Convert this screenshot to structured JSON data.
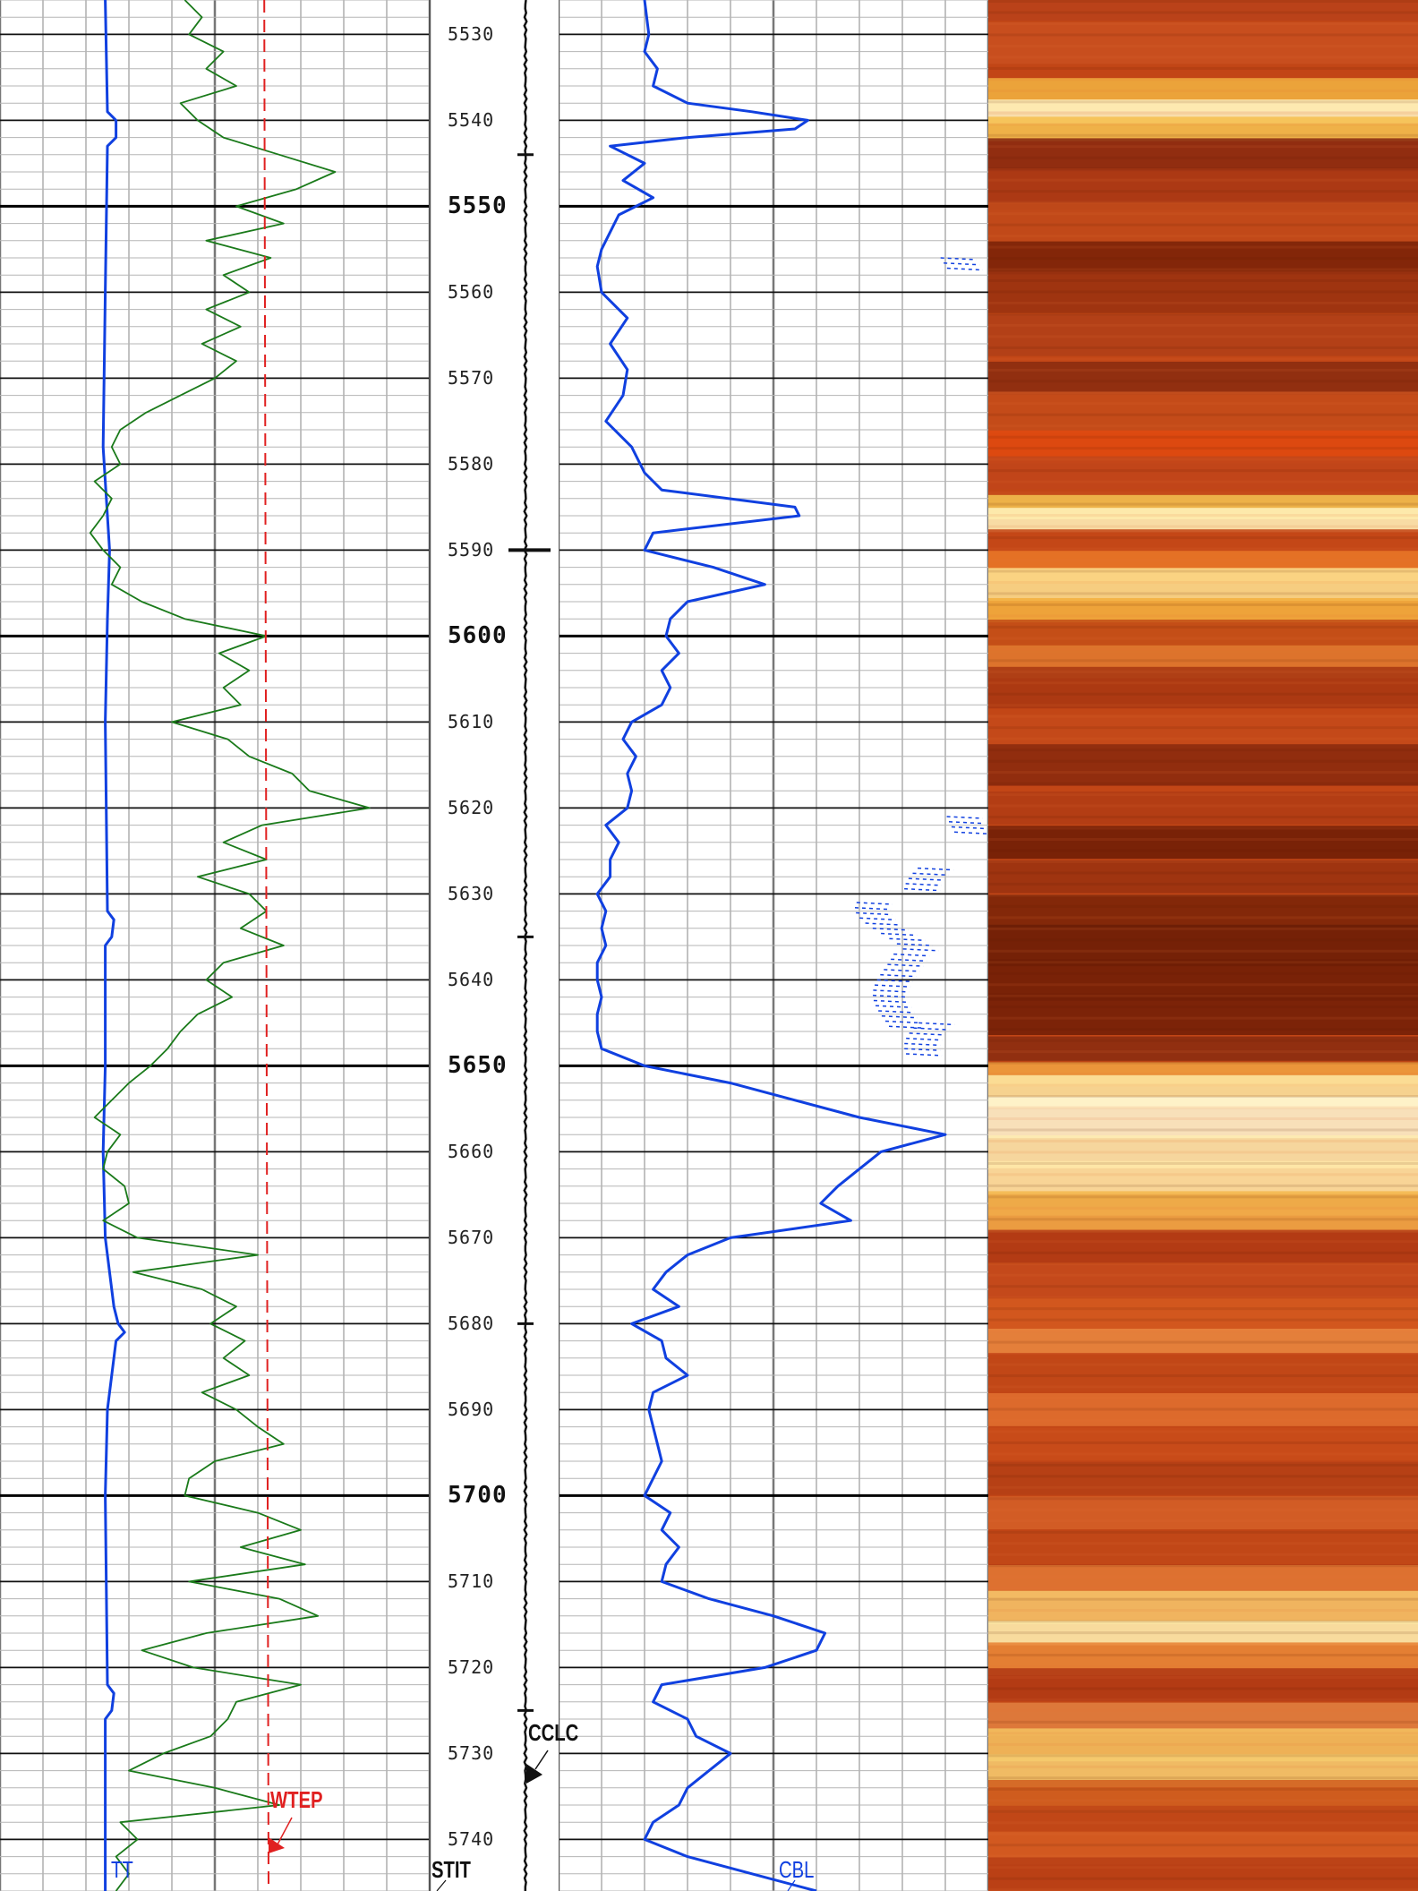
{
  "chart_data": {
    "type": "line",
    "title": "",
    "depth_range": [
      5526,
      5746
    ],
    "depth_labels": [
      "5530",
      "5540",
      "5550",
      "5560",
      "5570",
      "5580",
      "5590",
      "5600",
      "5610",
      "5620",
      "5630",
      "5640",
      "5650",
      "5660",
      "5670",
      "5680",
      "5690",
      "5700",
      "5710",
      "5720",
      "5730",
      "5740"
    ],
    "series": [
      {
        "name": "TT",
        "track": "left",
        "color": "#1040e0",
        "points": [
          [
            5526,
            0.245
          ],
          [
            5539,
            0.25
          ],
          [
            5540,
            0.27
          ],
          [
            5542,
            0.27
          ],
          [
            5543,
            0.25
          ],
          [
            5560,
            0.245
          ],
          [
            5578,
            0.24
          ],
          [
            5590,
            0.255
          ],
          [
            5598,
            0.25
          ],
          [
            5610,
            0.245
          ],
          [
            5632,
            0.25
          ],
          [
            5633,
            0.265
          ],
          [
            5635,
            0.26
          ],
          [
            5636,
            0.245
          ],
          [
            5650,
            0.245
          ],
          [
            5660,
            0.24
          ],
          [
            5670,
            0.245
          ],
          [
            5678,
            0.265
          ],
          [
            5680,
            0.275
          ],
          [
            5681,
            0.29
          ],
          [
            5682,
            0.27
          ],
          [
            5690,
            0.25
          ],
          [
            5700,
            0.245
          ],
          [
            5722,
            0.25
          ],
          [
            5723,
            0.265
          ],
          [
            5725,
            0.26
          ],
          [
            5726,
            0.245
          ],
          [
            5746,
            0.245
          ]
        ]
      },
      {
        "name": "STIT",
        "track": "left",
        "color": "#1a7a1a",
        "points": [
          [
            5526,
            0.43
          ],
          [
            5528,
            0.47
          ],
          [
            5530,
            0.44
          ],
          [
            5532,
            0.52
          ],
          [
            5534,
            0.48
          ],
          [
            5536,
            0.55
          ],
          [
            5538,
            0.42
          ],
          [
            5540,
            0.46
          ],
          [
            5542,
            0.52
          ],
          [
            5544,
            0.65
          ],
          [
            5546,
            0.78
          ],
          [
            5548,
            0.69
          ],
          [
            5550,
            0.55
          ],
          [
            5552,
            0.66
          ],
          [
            5554,
            0.48
          ],
          [
            5556,
            0.63
          ],
          [
            5558,
            0.52
          ],
          [
            5560,
            0.58
          ],
          [
            5562,
            0.48
          ],
          [
            5564,
            0.56
          ],
          [
            5566,
            0.47
          ],
          [
            5568,
            0.55
          ],
          [
            5570,
            0.5
          ],
          [
            5572,
            0.42
          ],
          [
            5574,
            0.34
          ],
          [
            5576,
            0.28
          ],
          [
            5578,
            0.26
          ],
          [
            5580,
            0.28
          ],
          [
            5582,
            0.22
          ],
          [
            5584,
            0.26
          ],
          [
            5586,
            0.24
          ],
          [
            5588,
            0.21
          ],
          [
            5590,
            0.24
          ],
          [
            5592,
            0.28
          ],
          [
            5594,
            0.26
          ],
          [
            5596,
            0.33
          ],
          [
            5598,
            0.43
          ],
          [
            5600,
            0.62
          ],
          [
            5602,
            0.51
          ],
          [
            5604,
            0.58
          ],
          [
            5606,
            0.52
          ],
          [
            5608,
            0.56
          ],
          [
            5610,
            0.4
          ],
          [
            5612,
            0.53
          ],
          [
            5614,
            0.58
          ],
          [
            5616,
            0.68
          ],
          [
            5618,
            0.72
          ],
          [
            5620,
            0.86
          ],
          [
            5622,
            0.61
          ],
          [
            5624,
            0.52
          ],
          [
            5626,
            0.62
          ],
          [
            5628,
            0.46
          ],
          [
            5630,
            0.58
          ],
          [
            5632,
            0.62
          ],
          [
            5634,
            0.56
          ],
          [
            5636,
            0.66
          ],
          [
            5638,
            0.52
          ],
          [
            5640,
            0.48
          ],
          [
            5642,
            0.54
          ],
          [
            5644,
            0.46
          ],
          [
            5646,
            0.42
          ],
          [
            5648,
            0.39
          ],
          [
            5650,
            0.35
          ],
          [
            5652,
            0.3
          ],
          [
            5654,
            0.26
          ],
          [
            5656,
            0.22
          ],
          [
            5658,
            0.28
          ],
          [
            5660,
            0.25
          ],
          [
            5662,
            0.24
          ],
          [
            5664,
            0.29
          ],
          [
            5666,
            0.3
          ],
          [
            5668,
            0.24
          ],
          [
            5670,
            0.32
          ],
          [
            5672,
            0.6
          ],
          [
            5674,
            0.31
          ],
          [
            5676,
            0.47
          ],
          [
            5678,
            0.55
          ],
          [
            5680,
            0.49
          ],
          [
            5682,
            0.57
          ],
          [
            5684,
            0.52
          ],
          [
            5686,
            0.58
          ],
          [
            5688,
            0.47
          ],
          [
            5690,
            0.55
          ],
          [
            5692,
            0.6
          ],
          [
            5694,
            0.66
          ],
          [
            5696,
            0.5
          ],
          [
            5698,
            0.44
          ],
          [
            5700,
            0.43
          ],
          [
            5702,
            0.6
          ],
          [
            5704,
            0.7
          ],
          [
            5706,
            0.56
          ],
          [
            5708,
            0.71
          ],
          [
            5710,
            0.44
          ],
          [
            5712,
            0.65
          ],
          [
            5714,
            0.74
          ],
          [
            5716,
            0.48
          ],
          [
            5718,
            0.33
          ],
          [
            5720,
            0.45
          ],
          [
            5722,
            0.7
          ],
          [
            5724,
            0.55
          ],
          [
            5726,
            0.53
          ],
          [
            5728,
            0.49
          ],
          [
            5730,
            0.38
          ],
          [
            5732,
            0.3
          ],
          [
            5734,
            0.5
          ],
          [
            5736,
            0.65
          ],
          [
            5738,
            0.28
          ],
          [
            5740,
            0.32
          ],
          [
            5742,
            0.27
          ],
          [
            5744,
            0.3
          ],
          [
            5746,
            0.27
          ]
        ]
      },
      {
        "name": "WTEP",
        "track": "left",
        "color": "#e02020",
        "dashed": true,
        "points": [
          [
            5526,
            0.615
          ],
          [
            5746,
            0.625
          ]
        ]
      },
      {
        "name": "CBL",
        "track": "middle",
        "color": "#1040e0",
        "points": [
          [
            5526,
            0.2
          ],
          [
            5530,
            0.21
          ],
          [
            5532,
            0.2
          ],
          [
            5534,
            0.23
          ],
          [
            5536,
            0.22
          ],
          [
            5538,
            0.3
          ],
          [
            5539,
            0.45
          ],
          [
            5540,
            0.58
          ],
          [
            5541,
            0.55
          ],
          [
            5542,
            0.3
          ],
          [
            5543,
            0.12
          ],
          [
            5545,
            0.2
          ],
          [
            5547,
            0.15
          ],
          [
            5549,
            0.22
          ],
          [
            5551,
            0.14
          ],
          [
            5553,
            0.12
          ],
          [
            5555,
            0.1
          ],
          [
            5557,
            0.09
          ],
          [
            5560,
            0.1
          ],
          [
            5563,
            0.16
          ],
          [
            5566,
            0.12
          ],
          [
            5569,
            0.16
          ],
          [
            5572,
            0.15
          ],
          [
            5575,
            0.11
          ],
          [
            5578,
            0.17
          ],
          [
            5581,
            0.2
          ],
          [
            5583,
            0.24
          ],
          [
            5585,
            0.55
          ],
          [
            5586,
            0.56
          ],
          [
            5588,
            0.22
          ],
          [
            5590,
            0.2
          ],
          [
            5592,
            0.36
          ],
          [
            5594,
            0.48
          ],
          [
            5596,
            0.3
          ],
          [
            5598,
            0.26
          ],
          [
            5600,
            0.25
          ],
          [
            5602,
            0.28
          ],
          [
            5604,
            0.24
          ],
          [
            5606,
            0.26
          ],
          [
            5608,
            0.24
          ],
          [
            5610,
            0.17
          ],
          [
            5612,
            0.15
          ],
          [
            5614,
            0.18
          ],
          [
            5616,
            0.16
          ],
          [
            5618,
            0.17
          ],
          [
            5620,
            0.16
          ],
          [
            5622,
            0.11
          ],
          [
            5624,
            0.14
          ],
          [
            5626,
            0.12
          ],
          [
            5628,
            0.12
          ],
          [
            5630,
            0.09
          ],
          [
            5632,
            0.11
          ],
          [
            5634,
            0.1
          ],
          [
            5636,
            0.11
          ],
          [
            5638,
            0.09
          ],
          [
            5640,
            0.09
          ],
          [
            5642,
            0.1
          ],
          [
            5644,
            0.09
          ],
          [
            5646,
            0.09
          ],
          [
            5648,
            0.1
          ],
          [
            5650,
            0.2
          ],
          [
            5652,
            0.4
          ],
          [
            5654,
            0.55
          ],
          [
            5656,
            0.7
          ],
          [
            5658,
            0.9
          ],
          [
            5660,
            0.75
          ],
          [
            5662,
            0.7
          ],
          [
            5664,
            0.65
          ],
          [
            5666,
            0.61
          ],
          [
            5668,
            0.68
          ],
          [
            5670,
            0.4
          ],
          [
            5672,
            0.3
          ],
          [
            5674,
            0.25
          ],
          [
            5676,
            0.22
          ],
          [
            5678,
            0.28
          ],
          [
            5680,
            0.17
          ],
          [
            5682,
            0.24
          ],
          [
            5684,
            0.25
          ],
          [
            5686,
            0.3
          ],
          [
            5688,
            0.22
          ],
          [
            5690,
            0.21
          ],
          [
            5692,
            0.22
          ],
          [
            5694,
            0.23
          ],
          [
            5696,
            0.24
          ],
          [
            5698,
            0.22
          ],
          [
            5700,
            0.2
          ],
          [
            5702,
            0.26
          ],
          [
            5704,
            0.24
          ],
          [
            5706,
            0.28
          ],
          [
            5708,
            0.25
          ],
          [
            5710,
            0.24
          ],
          [
            5712,
            0.35
          ],
          [
            5714,
            0.5
          ],
          [
            5716,
            0.62
          ],
          [
            5718,
            0.6
          ],
          [
            5720,
            0.48
          ],
          [
            5722,
            0.24
          ],
          [
            5724,
            0.22
          ],
          [
            5726,
            0.3
          ],
          [
            5728,
            0.32
          ],
          [
            5730,
            0.4
          ],
          [
            5732,
            0.35
          ],
          [
            5734,
            0.3
          ],
          [
            5736,
            0.28
          ],
          [
            5738,
            0.22
          ],
          [
            5740,
            0.2
          ],
          [
            5742,
            0.3
          ],
          [
            5744,
            0.45
          ],
          [
            5746,
            0.6
          ]
        ]
      }
    ],
    "x_ranges": {
      "left": [
        0,
        1
      ],
      "middle": [
        0,
        1
      ]
    },
    "grid": true
  },
  "labels": {
    "cclc": "CCLC",
    "wtep": "WTEP",
    "tt": "TT",
    "stit": "STIT",
    "cbl": "CBL"
  },
  "colors": {
    "tt": "#1040e0",
    "stit": "#1a7a1a",
    "wtep": "#e02020",
    "cbl": "#1040e0",
    "ccl": "#111111"
  }
}
